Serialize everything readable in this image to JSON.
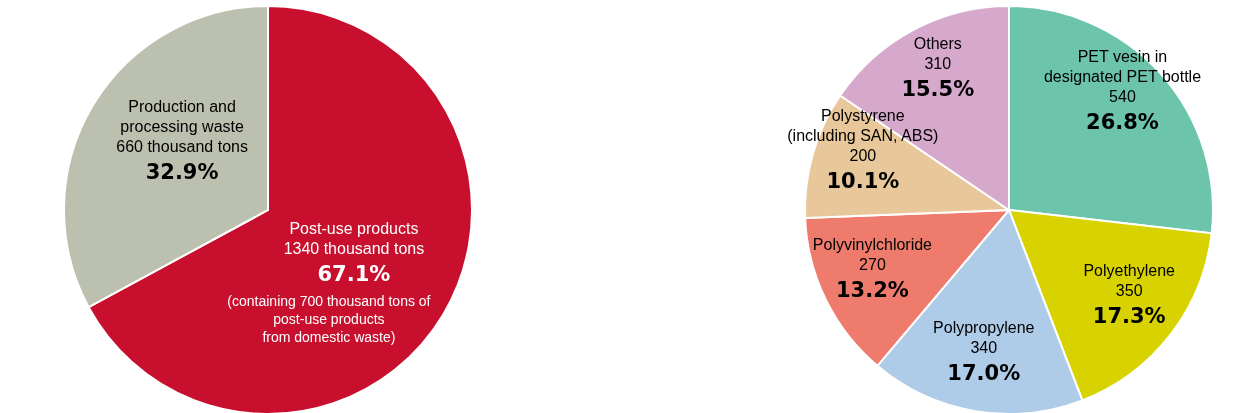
{
  "chart_data": [
    {
      "type": "pie",
      "categories": [
        "Post-use products\n1340 thousand tons",
        "Production and\nprocessing waste\n660 thousand tons"
      ],
      "values": [
        67.1,
        32.9
      ],
      "value_labels": [
        "67.1%",
        "32.9%"
      ],
      "colors": [
        "#c8102e",
        "#bcc0ae"
      ],
      "annotations": [
        "(containing 700 thousand tons of\npost-use products\nfrom domestic waste)"
      ]
    },
    {
      "type": "pie",
      "categories": [
        "PET vesin in\ndesignated PET bottle\n540",
        "Polyethylene\n350",
        "Polypropylene\n340",
        "Polyvinylchloride\n270",
        "Polystyrene\n(including SAN, ABS)\n200",
        "Others\n310"
      ],
      "values": [
        26.8,
        17.3,
        17.0,
        13.2,
        10.1,
        15.5
      ],
      "value_labels": [
        "26.8%",
        "17.3%",
        "17.0%",
        "13.2%",
        "10.1%",
        "15.5%"
      ],
      "colors": [
        "#6cc4aa",
        "#d8d300",
        "#aecbe8",
        "#ef7b6c",
        "#e8c79a",
        "#d6a8cc"
      ]
    }
  ]
}
